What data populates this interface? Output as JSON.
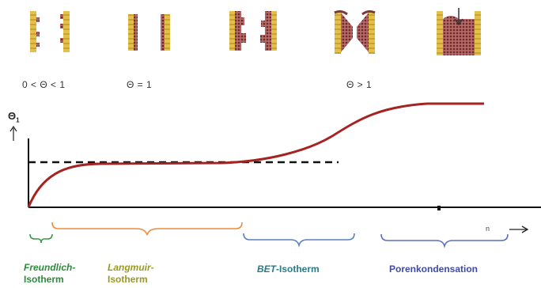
{
  "theta_labels": {
    "partial": "0 < Θ < 1",
    "mono": "Θ = 1",
    "multi": "Θ > 1"
  },
  "axis": {
    "y_label": "Θ",
    "y_subscript": "1",
    "x_label": "n"
  },
  "regions": {
    "freundlich": {
      "label_italic": "Freundlich-",
      "label_line2": "Isotherm",
      "color": "#2e8b3a"
    },
    "langmuir": {
      "label_italic": "Langmuir-",
      "label_line2": "Isotherm",
      "color": "#9a9a1e"
    },
    "bet": {
      "label_italic": "BET",
      "label_plain": "-Isotherm",
      "color": "#2b7a86"
    },
    "pore": {
      "label_plain": "Porenkondensation",
      "color": "#3f4aa8"
    }
  },
  "colors": {
    "curve": "#a52323",
    "bracket_freundlich": "#3a9a4a",
    "bracket_langmuir": "#f08a3a",
    "bracket_bet": "#5a7fc0",
    "bracket_pore": "#5a6fc0",
    "pore_wall": "#d8b84a",
    "adsorbate": "#7a3a3a"
  }
}
